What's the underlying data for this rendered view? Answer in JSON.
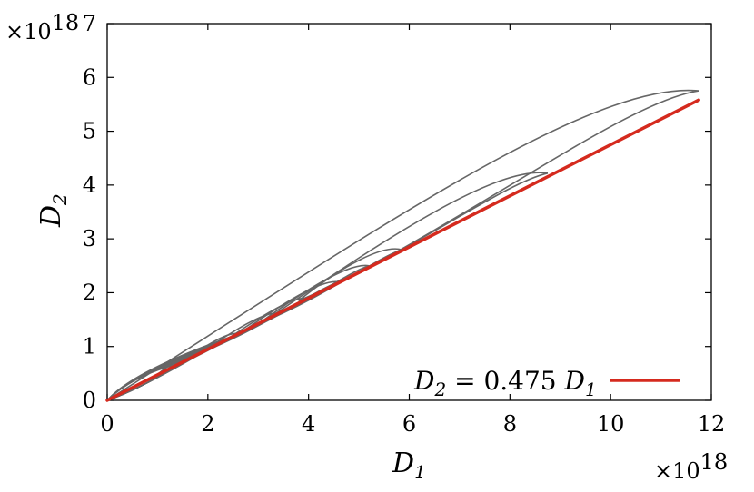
{
  "chart_data": {
    "type": "line",
    "xlabel": "D",
    "xlabel_sub": "1",
    "ylabel": "D",
    "ylabel_sub": "2",
    "x_multiplier": {
      "base": "×10",
      "exp": "18"
    },
    "y_multiplier": {
      "base": "×10",
      "exp": "18"
    },
    "xlim": [
      0,
      12
    ],
    "ylim": [
      0,
      7
    ],
    "xticks": [
      0,
      2,
      4,
      6,
      8,
      10,
      12
    ],
    "yticks": [
      0,
      1,
      2,
      3,
      4,
      5,
      6,
      7
    ],
    "grid": false,
    "legend_position": "bottom-right",
    "series": [
      {
        "role": "trajectory",
        "color": "#666666",
        "loops": [
          {
            "tip": [
              11.75,
              5.75
            ],
            "upper_bulge": 0.55,
            "lower_bulge": 0.22,
            "end": [
              3.2,
              1.52
            ]
          },
          {
            "tip": [
              8.75,
              4.22
            ],
            "upper_bulge": 0.38,
            "lower_bulge": 0.18,
            "end": [
              3.8,
              1.85
            ]
          },
          {
            "tip": [
              5.85,
              2.8
            ],
            "upper_bulge": 0.26,
            "lower_bulge": 0.14,
            "end": [
              3.0,
              1.42
            ]
          },
          {
            "tip": [
              5.2,
              2.5
            ],
            "upper_bulge": 0.18,
            "lower_bulge": 0.1,
            "end": [
              2.6,
              1.22
            ]
          },
          {
            "tip": [
              4.6,
              2.2
            ],
            "upper_bulge": 0.15,
            "lower_bulge": 0.09,
            "end": [
              2.2,
              1.02
            ]
          },
          {
            "tip": [
              4.0,
              1.9
            ],
            "upper_bulge": 0.12,
            "lower_bulge": 0.08,
            "end": [
              1.8,
              0.85
            ]
          },
          {
            "tip": [
              3.4,
              1.62
            ],
            "upper_bulge": 0.1,
            "lower_bulge": 0.07,
            "end": [
              1.4,
              0.66
            ]
          },
          {
            "tip": [
              2.6,
              1.24
            ],
            "upper_bulge": 0.09,
            "lower_bulge": 0.06,
            "end": [
              1.0,
              0.48
            ]
          },
          {
            "tip": [
              1.6,
              0.78
            ],
            "upper_bulge": 0.08,
            "lower_bulge": 0.05,
            "end": [
              0.0,
              0.0
            ]
          }
        ]
      },
      {
        "role": "fit",
        "color": "#d52a1e",
        "legend": {
          "lhs": "D",
          "lhs_sub": "2",
          "middle": " = 0.475 ",
          "rhs": "D",
          "rhs_sub": "1"
        },
        "slope": 0.475,
        "x": [
          0,
          11.75
        ],
        "y": [
          0,
          5.58
        ]
      }
    ]
  }
}
